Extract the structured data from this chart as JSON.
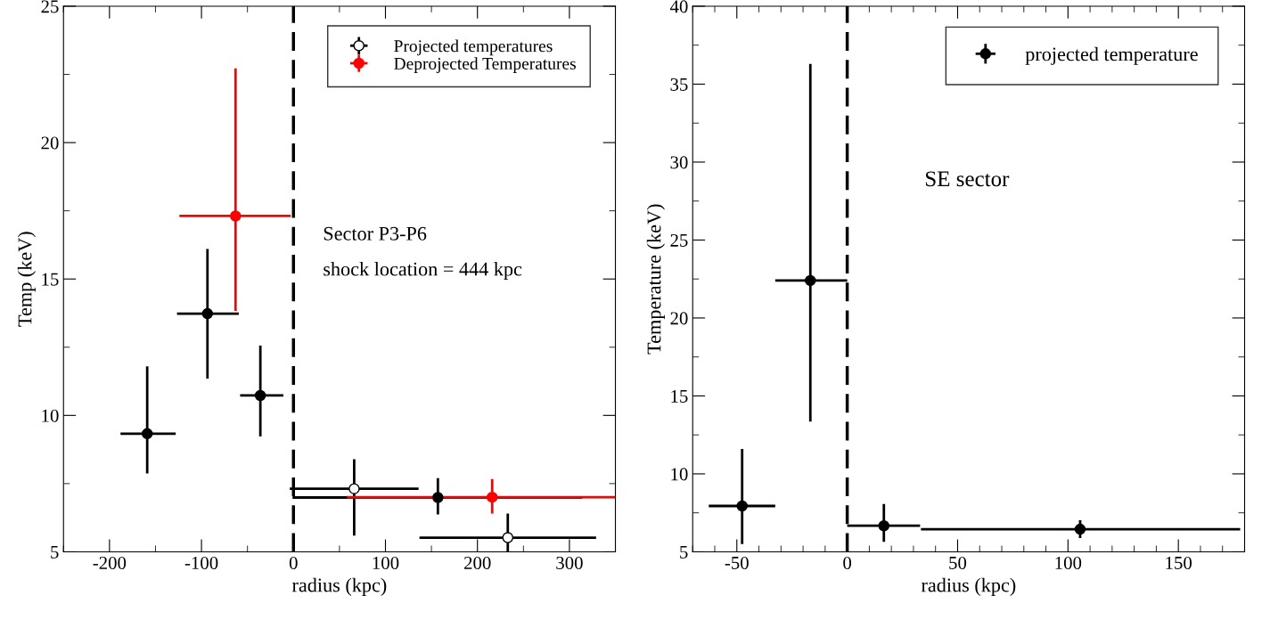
{
  "chart_data": [
    {
      "type": "scatter",
      "xlabel": "radius (kpc)",
      "ylabel": "Temp (keV)",
      "xlim": [
        -250,
        350
      ],
      "ylim": [
        5,
        25
      ],
      "xticks": [
        -200,
        -100,
        0,
        100,
        200,
        300
      ],
      "yticks": [
        5,
        10,
        15,
        20,
        25
      ],
      "grid": false,
      "legend": "top right",
      "marker": "circle",
      "annotations": [
        "Sector P3-P6",
        "shock location = 444 kpc"
      ],
      "ref_lines": [
        {
          "axis": "x",
          "value": 0,
          "color": "#000000",
          "line_style": "dashed"
        }
      ],
      "series": [
        {
          "name": "Projected temperatures",
          "color": "#000000",
          "x": [
            -159,
            -93.5,
            -36,
            66,
            157,
            233
          ],
          "values": [
            9.33,
            13.73,
            10.73,
            7.31,
            6.99,
            5.52
          ],
          "colors": [
            "#000000",
            "#000000",
            "#000000",
            "#ffffff",
            "#000000",
            "#ffffff"
          ],
          "errors": [
            [
              7.87,
              11.8
            ],
            [
              11.35,
              16.1
            ],
            [
              9.23,
              12.56
            ],
            [
              5.59,
              8.39
            ],
            [
              6.37,
              7.7
            ],
            [
              5,
              6.4
            ]
          ],
          "xerrors": [
            [
              -188,
              -128
            ],
            [
              -126.6,
              -59.4
            ],
            [
              -58,
              -11
            ],
            [
              -4,
              136
            ],
            [
              -1,
              314
            ],
            [
              137,
              329
            ]
          ]
        },
        {
          "name": "Deprojected Temperatures",
          "color": "#ff0000",
          "x": [
            -63,
            216
          ],
          "values": [
            17.31,
            7.0
          ],
          "errors": [
            [
              13.83,
              22.72
            ],
            [
              6.4,
              7.67
            ]
          ],
          "xerrors": [
            [
              -124,
              -3
            ],
            [
              58,
              350
            ]
          ]
        }
      ]
    },
    {
      "type": "scatter",
      "xlabel": "radius (kpc)",
      "ylabel": "Temperature (keV)",
      "xlim": [
        -70,
        180
      ],
      "ylim": [
        5,
        40
      ],
      "xticks": [
        -50,
        0,
        50,
        100,
        150
      ],
      "yticks": [
        5,
        10,
        15,
        20,
        25,
        30,
        35,
        40
      ],
      "grid": false,
      "legend": "top right",
      "marker": "circle",
      "annotations": [
        "SE sector"
      ],
      "ref_lines": [
        {
          "axis": "x",
          "value": 0,
          "color": "#000000",
          "line_style": "dashed"
        }
      ],
      "series": [
        {
          "name": "projected temperature",
          "color": "#000000",
          "x": [
            -47.6,
            -16.7,
            16.6,
            105.5
          ],
          "values": [
            7.94,
            22.4,
            6.67,
            6.45
          ],
          "errors": [
            [
              5.5,
              11.6
            ],
            [
              13.35,
              36.3
            ],
            [
              5.64,
              8.07
            ],
            [
              5.88,
              7.02
            ]
          ],
          "xerrors": [
            [
              -62.7,
              -32.6
            ],
            [
              -32.6,
              0
            ],
            [
              0,
              33
            ],
            [
              33.4,
              178
            ]
          ]
        }
      ]
    }
  ]
}
